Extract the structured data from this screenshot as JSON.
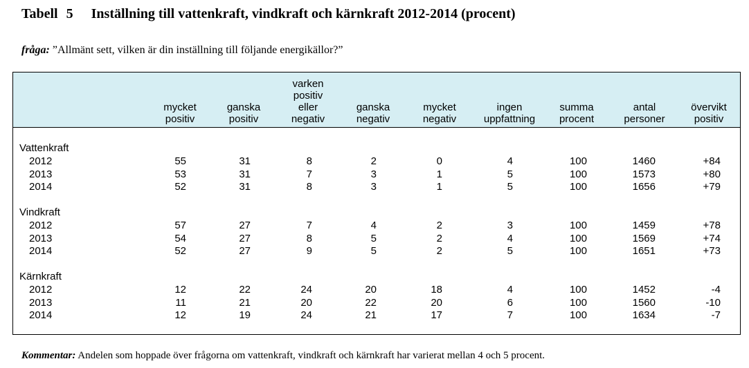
{
  "title": {
    "label": "Tabell",
    "number": "5",
    "text": "Inställning till vattenkraft, vindkraft och kärnkraft 2012-2014 (procent)"
  },
  "question": {
    "label": "fråga:",
    "text": "”Allmänt sett, vilken är din inställning till följande energikällor?”"
  },
  "columns": [
    [
      "mycket",
      "positiv"
    ],
    [
      "ganska",
      "positiv"
    ],
    [
      "varken",
      "positiv",
      "eller",
      "negativ"
    ],
    [
      "ganska",
      "negativ"
    ],
    [
      "mycket",
      "negativ"
    ],
    [
      "ingen",
      "uppfattning"
    ],
    [
      "summa",
      "procent"
    ],
    [
      "antal",
      "personer"
    ],
    [
      "övervikt",
      "positiv"
    ]
  ],
  "groups": [
    {
      "name": "Vattenkraft",
      "rows": [
        {
          "year": "2012",
          "values": [
            "55",
            "31",
            "8",
            "2",
            "0",
            "4",
            "100",
            "1460",
            "+84"
          ]
        },
        {
          "year": "2013",
          "values": [
            "53",
            "31",
            "7",
            "3",
            "1",
            "5",
            "100",
            "1573",
            "+80"
          ]
        },
        {
          "year": "2014",
          "values": [
            "52",
            "31",
            "8",
            "3",
            "1",
            "5",
            "100",
            "1656",
            "+79"
          ]
        }
      ]
    },
    {
      "name": "Vindkraft",
      "rows": [
        {
          "year": "2012",
          "values": [
            "57",
            "27",
            "7",
            "4",
            "2",
            "3",
            "100",
            "1459",
            "+78"
          ]
        },
        {
          "year": "2013",
          "values": [
            "54",
            "27",
            "8",
            "5",
            "2",
            "4",
            "100",
            "1569",
            "+74"
          ]
        },
        {
          "year": "2014",
          "values": [
            "52",
            "27",
            "9",
            "5",
            "2",
            "5",
            "100",
            "1651",
            "+73"
          ]
        }
      ]
    },
    {
      "name": "Kärnkraft",
      "rows": [
        {
          "year": "2012",
          "values": [
            "12",
            "22",
            "24",
            "20",
            "18",
            "4",
            "100",
            "1452",
            "-4"
          ]
        },
        {
          "year": "2013",
          "values": [
            "11",
            "21",
            "20",
            "22",
            "20",
            "6",
            "100",
            "1560",
            "-10"
          ]
        },
        {
          "year": "2014",
          "values": [
            "12",
            "19",
            "24",
            "21",
            "17",
            "7",
            "100",
            "1634",
            "-7"
          ]
        }
      ]
    }
  ],
  "comment": {
    "label": "Kommentar:",
    "text": "Andelen som hoppade över frågorna om vattenkraft, vindkraft och kärnkraft har varierat mellan 4 och 5 procent."
  }
}
